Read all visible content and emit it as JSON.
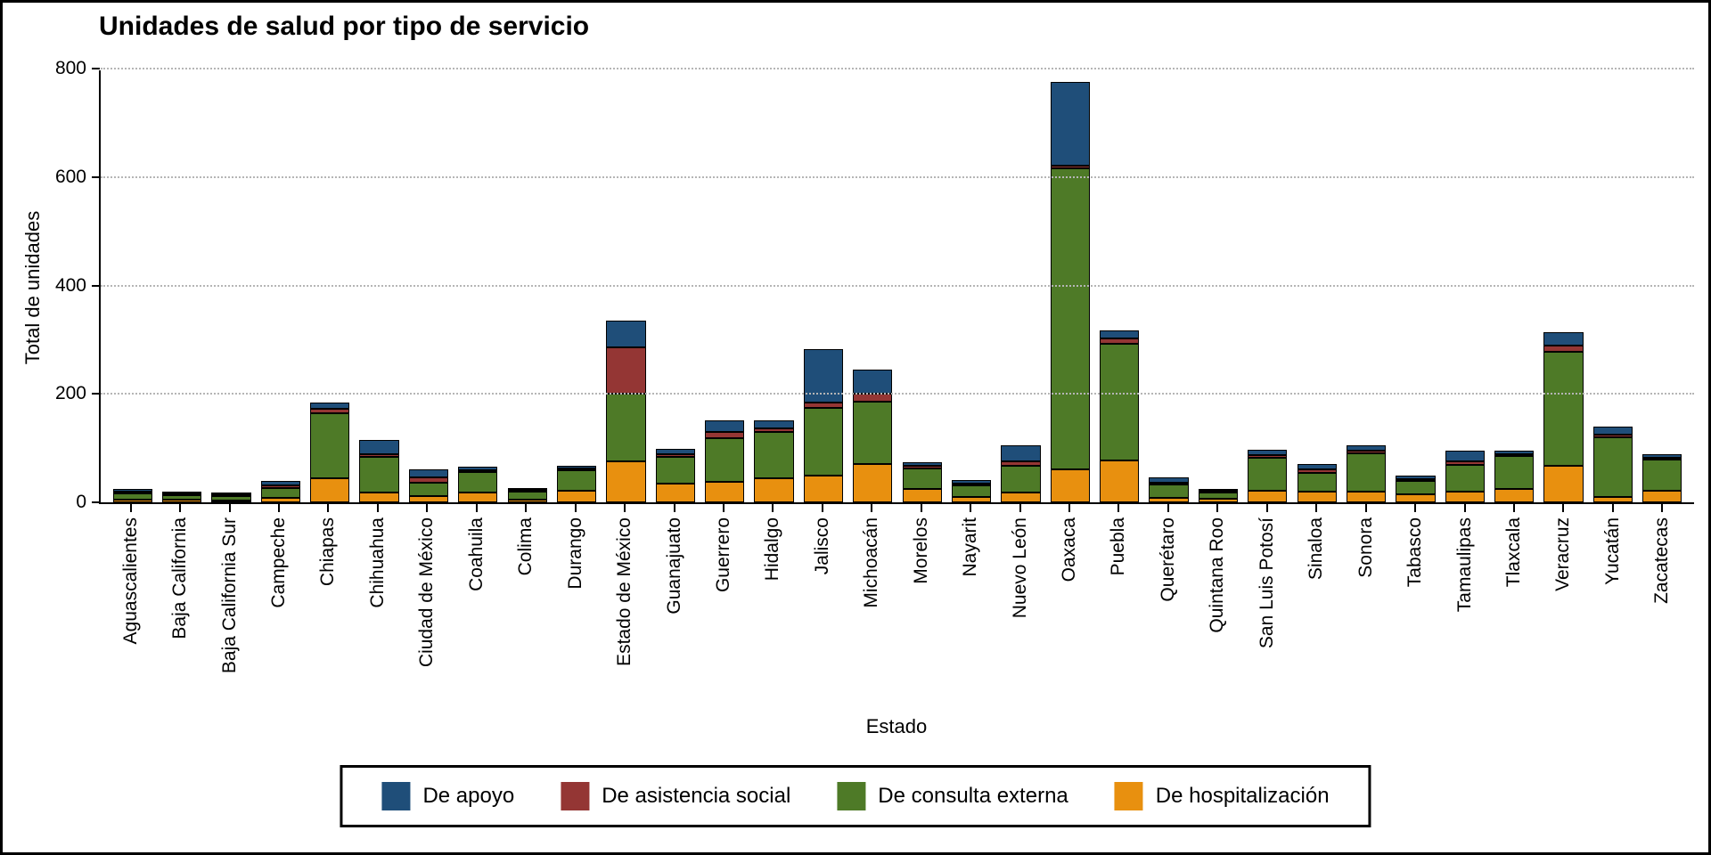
{
  "title": "Unidades de salud por tipo de servicio",
  "chart_data": {
    "type": "bar",
    "stacked": true,
    "title": "Unidades de salud por tipo de servicio",
    "xlabel": "Estado",
    "ylabel": "Total de unidades",
    "ylim": [
      0,
      800
    ],
    "yticks": [
      0,
      200,
      400,
      600,
      800
    ],
    "grid": "horizontal-dotted",
    "legend_position": "bottom",
    "categories": [
      "Aguascalientes",
      "Baja California",
      "Baja California Sur",
      "Campeche",
      "Chiapas",
      "Chihuahua",
      "Ciudad de México",
      "Coahuila",
      "Colima",
      "Durango",
      "Estado de México",
      "Guanajuato",
      "Guerrero",
      "Hidalgo",
      "Jalisco",
      "Michoacán",
      "Morelos",
      "Nayarit",
      "Nuevo León",
      "Oaxaca",
      "Puebla",
      "Querétaro",
      "Quintana Roo",
      "San Luis Potosí",
      "Sinaloa",
      "Sonora",
      "Tabasco",
      "Tamaulipas",
      "Tlaxcala",
      "Veracruz",
      "Yucatán",
      "Zacatecas"
    ],
    "series": [
      {
        "name": "De apoyo",
        "color": "#1F4E79",
        "values": [
          5,
          3,
          2,
          9,
          12,
          27,
          15,
          6,
          4,
          5,
          50,
          10,
          22,
          15,
          98,
          45,
          7,
          7,
          29,
          155,
          15,
          10,
          3,
          10,
          10,
          10,
          6,
          20,
          6,
          25,
          15,
          7
        ]
      },
      {
        "name": "De asistencia social",
        "color": "#943634",
        "values": [
          3,
          2,
          1,
          5,
          8,
          5,
          10,
          3,
          2,
          3,
          85,
          5,
          12,
          7,
          10,
          15,
          5,
          4,
          8,
          5,
          10,
          4,
          2,
          5,
          7,
          5,
          4,
          7,
          4,
          12,
          5,
          3
        ]
      },
      {
        "name": "De consulta externa",
        "color": "#4E7A27",
        "values": [
          12,
          8,
          8,
          18,
          120,
          65,
          25,
          38,
          14,
          38,
          125,
          50,
          80,
          85,
          125,
          115,
          38,
          22,
          50,
          555,
          215,
          25,
          12,
          60,
          35,
          70,
          25,
          50,
          60,
          210,
          110,
          58
        ]
      },
      {
        "name": "De hospitalización",
        "color": "#E8900F",
        "values": [
          5,
          5,
          4,
          8,
          45,
          18,
          12,
          18,
          5,
          22,
          75,
          35,
          38,
          45,
          50,
          70,
          25,
          10,
          18,
          60,
          78,
          8,
          6,
          22,
          20,
          20,
          15,
          20,
          25,
          68,
          10,
          22
        ]
      }
    ],
    "stack_order_bottom_to_top": [
      "De hospitalización",
      "De consulta externa",
      "De asistencia social",
      "De apoyo"
    ],
    "legend": {
      "entries": [
        {
          "label": "De apoyo",
          "color": "#1F4E79"
        },
        {
          "label": "De asistencia social",
          "color": "#943634"
        },
        {
          "label": "De consulta externa",
          "color": "#4E7A27"
        },
        {
          "label": "De hospitalización",
          "color": "#E8900F"
        }
      ]
    }
  }
}
